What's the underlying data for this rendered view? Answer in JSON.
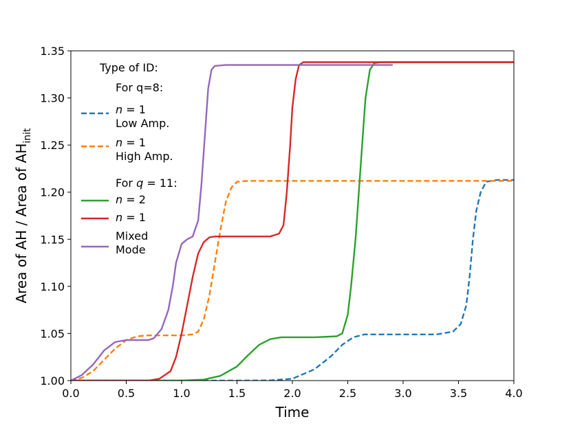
{
  "chart_data": {
    "type": "line",
    "title": "",
    "xlabel": "Time",
    "ylabel_prefix": "Area of  AH / Area of AH",
    "ylabel_subscript": "init",
    "xlim": [
      0.0,
      4.0
    ],
    "ylim": [
      1.0,
      1.35
    ],
    "xticks": [
      0.0,
      0.5,
      1.0,
      1.5,
      2.0,
      2.5,
      3.0,
      3.5,
      4.0
    ],
    "xtick_labels": [
      "0.0",
      "0.5",
      "1.0",
      "1.5",
      "2.0",
      "2.5",
      "3.0",
      "3.5",
      "4.0"
    ],
    "yticks": [
      1.0,
      1.05,
      1.1,
      1.15,
      1.2,
      1.25,
      1.3,
      1.35
    ],
    "ytick_labels": [
      "1.00",
      "1.05",
      "1.10",
      "1.15",
      "1.20",
      "1.25",
      "1.30",
      "1.35"
    ],
    "legend": {
      "placement": "top-left",
      "title": "Type of ID:",
      "group1_heading": "For q=8:",
      "group2_heading_prefix": "For ",
      "group2_heading_var": "q",
      "group2_heading_suffix": " = 11:"
    },
    "series": [
      {
        "name": "q8_n1_low",
        "legend_var": "n",
        "legend_eq": " = 1",
        "legend_line2": "Low Amp.",
        "color": "#1f77b4",
        "dashed": true,
        "points": [
          [
            0.0,
            1.0
          ],
          [
            1.5,
            1.0
          ],
          [
            1.8,
            1.0002
          ],
          [
            2.0,
            1.002
          ],
          [
            2.2,
            1.012
          ],
          [
            2.35,
            1.026
          ],
          [
            2.45,
            1.038
          ],
          [
            2.55,
            1.046
          ],
          [
            2.65,
            1.049
          ],
          [
            3.0,
            1.049
          ],
          [
            3.3,
            1.049
          ],
          [
            3.45,
            1.052
          ],
          [
            3.52,
            1.06
          ],
          [
            3.57,
            1.08
          ],
          [
            3.6,
            1.11
          ],
          [
            3.63,
            1.15
          ],
          [
            3.66,
            1.18
          ],
          [
            3.7,
            1.2
          ],
          [
            3.75,
            1.211
          ],
          [
            3.85,
            1.213
          ],
          [
            4.0,
            1.213
          ]
        ]
      },
      {
        "name": "q8_n1_high",
        "legend_var": "n",
        "legend_eq": " = 1",
        "legend_line2": "High Amp.",
        "color": "#ff7f0e",
        "dashed": true,
        "points": [
          [
            0.0,
            1.0
          ],
          [
            0.1,
            1.003
          ],
          [
            0.2,
            1.01
          ],
          [
            0.3,
            1.022
          ],
          [
            0.4,
            1.034
          ],
          [
            0.5,
            1.043
          ],
          [
            0.6,
            1.047
          ],
          [
            0.7,
            1.048
          ],
          [
            1.0,
            1.048
          ],
          [
            1.1,
            1.049
          ],
          [
            1.15,
            1.052
          ],
          [
            1.2,
            1.065
          ],
          [
            1.25,
            1.09
          ],
          [
            1.3,
            1.125
          ],
          [
            1.35,
            1.16
          ],
          [
            1.4,
            1.19
          ],
          [
            1.45,
            1.205
          ],
          [
            1.5,
            1.211
          ],
          [
            1.6,
            1.212
          ],
          [
            4.0,
            1.212
          ]
        ]
      },
      {
        "name": "q11_n2",
        "legend_var": "n",
        "legend_eq": " = 2",
        "legend_line2": "",
        "color": "#2ca02c",
        "dashed": false,
        "points": [
          [
            0.0,
            1.0
          ],
          [
            1.0,
            1.0
          ],
          [
            1.2,
            1.001
          ],
          [
            1.35,
            1.005
          ],
          [
            1.5,
            1.015
          ],
          [
            1.6,
            1.027
          ],
          [
            1.7,
            1.038
          ],
          [
            1.8,
            1.044
          ],
          [
            1.9,
            1.046
          ],
          [
            2.2,
            1.046
          ],
          [
            2.4,
            1.047
          ],
          [
            2.45,
            1.05
          ],
          [
            2.5,
            1.07
          ],
          [
            2.53,
            1.1
          ],
          [
            2.57,
            1.15
          ],
          [
            2.6,
            1.2
          ],
          [
            2.63,
            1.25
          ],
          [
            2.66,
            1.3
          ],
          [
            2.7,
            1.33
          ],
          [
            2.74,
            1.337
          ],
          [
            2.8,
            1.338
          ],
          [
            4.0,
            1.338
          ]
        ]
      },
      {
        "name": "q11_n1",
        "legend_var": "n",
        "legend_eq": " = 1",
        "legend_line2": "",
        "color": "#d62728",
        "dashed": false,
        "points": [
          [
            0.0,
            1.0
          ],
          [
            0.7,
            1.0
          ],
          [
            0.8,
            1.002
          ],
          [
            0.9,
            1.01
          ],
          [
            0.95,
            1.025
          ],
          [
            1.0,
            1.05
          ],
          [
            1.05,
            1.08
          ],
          [
            1.1,
            1.11
          ],
          [
            1.15,
            1.135
          ],
          [
            1.2,
            1.147
          ],
          [
            1.25,
            1.152
          ],
          [
            1.3,
            1.153
          ],
          [
            1.8,
            1.153
          ],
          [
            1.88,
            1.156
          ],
          [
            1.92,
            1.165
          ],
          [
            1.95,
            1.2
          ],
          [
            1.98,
            1.25
          ],
          [
            2.0,
            1.29
          ],
          [
            2.03,
            1.32
          ],
          [
            2.06,
            1.335
          ],
          [
            2.1,
            1.338
          ],
          [
            4.0,
            1.338
          ]
        ]
      },
      {
        "name": "q11_mixed",
        "legend_var": "",
        "legend_eq": "Mixed",
        "legend_line2": "Mode",
        "color": "#9467bd",
        "dashed": false,
        "points": [
          [
            0.0,
            1.0
          ],
          [
            0.1,
            1.006
          ],
          [
            0.2,
            1.017
          ],
          [
            0.3,
            1.032
          ],
          [
            0.4,
            1.041
          ],
          [
            0.5,
            1.043
          ],
          [
            0.7,
            1.043
          ],
          [
            0.75,
            1.045
          ],
          [
            0.82,
            1.055
          ],
          [
            0.88,
            1.075
          ],
          [
            0.92,
            1.1
          ],
          [
            0.95,
            1.125
          ],
          [
            1.0,
            1.145
          ],
          [
            1.05,
            1.15
          ],
          [
            1.1,
            1.153
          ],
          [
            1.15,
            1.17
          ],
          [
            1.18,
            1.21
          ],
          [
            1.21,
            1.26
          ],
          [
            1.24,
            1.31
          ],
          [
            1.27,
            1.33
          ],
          [
            1.3,
            1.334
          ],
          [
            1.4,
            1.335
          ],
          [
            2.9,
            1.335
          ]
        ]
      }
    ]
  }
}
